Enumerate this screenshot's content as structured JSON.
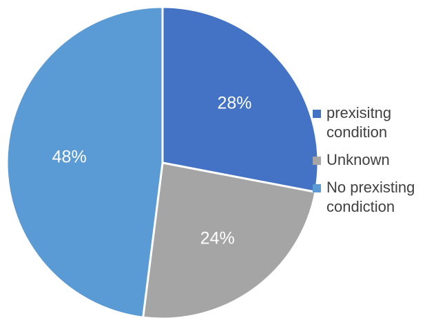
{
  "chart_data": {
    "type": "pie",
    "title": "",
    "legend_position": "right",
    "slices": [
      {
        "label": "prexisitng condition",
        "value": 28,
        "display": "28%",
        "color": "#4472c4"
      },
      {
        "label": "Unknown",
        "value": 24,
        "display": "24%",
        "color": "#a5a5a5"
      },
      {
        "label": "No prexisting condiction",
        "value": 48,
        "display": "48%",
        "color": "#5b9bd5"
      }
    ]
  },
  "legend": {
    "items": [
      {
        "text": "prexisitng\ncondition",
        "color": "#4472c4"
      },
      {
        "text": "Unknown",
        "color": "#a5a5a5"
      },
      {
        "text": "No prexisting\ncondiction",
        "color": "#5b9bd5"
      }
    ]
  }
}
